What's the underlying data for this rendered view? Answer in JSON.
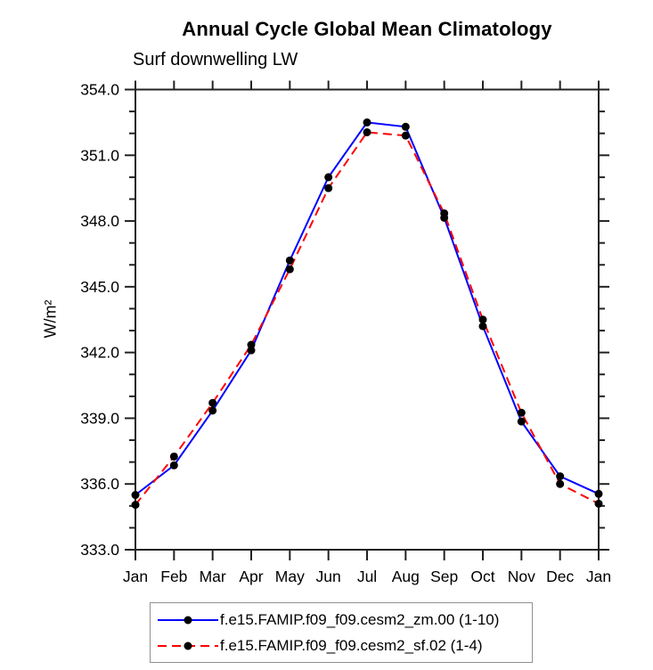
{
  "chart_data": {
    "type": "line",
    "title": "Annual Cycle Global Mean Climatology",
    "subtitle": "Surf downwelling LW",
    "ylabel": "W/m²",
    "xlabel": "",
    "categories": [
      "Jan",
      "Feb",
      "Mar",
      "Apr",
      "May",
      "Jun",
      "Jul",
      "Aug",
      "Sep",
      "Oct",
      "Nov",
      "Dec",
      "Jan"
    ],
    "ylim": [
      333.0,
      354.0
    ],
    "ytick_step": 3.0,
    "yminor_step": 1.0,
    "ytick_format_decimals": 1,
    "grid": false,
    "legend_position": "bottom",
    "axis_color": "#222222",
    "marker_color": "#000000",
    "series": [
      {
        "name": "f.e15.FAMIP.f09_f09.cesm2_zm.00 (1-10)",
        "color": "#0000ff",
        "style": "solid",
        "marker": "black-dot",
        "values": [
          335.5,
          336.85,
          339.35,
          342.1,
          346.2,
          350.0,
          352.5,
          352.3,
          348.15,
          343.2,
          338.85,
          336.35,
          335.55
        ]
      },
      {
        "name": "f.e15.FAMIP.f09_f09.cesm2_sf.02 (1-4)",
        "color": "#ff0000",
        "style": "dashed",
        "marker": "black-dot",
        "values": [
          335.05,
          337.25,
          339.7,
          342.35,
          345.8,
          349.5,
          352.05,
          351.9,
          348.35,
          343.5,
          339.25,
          336.0,
          335.1
        ]
      }
    ]
  }
}
